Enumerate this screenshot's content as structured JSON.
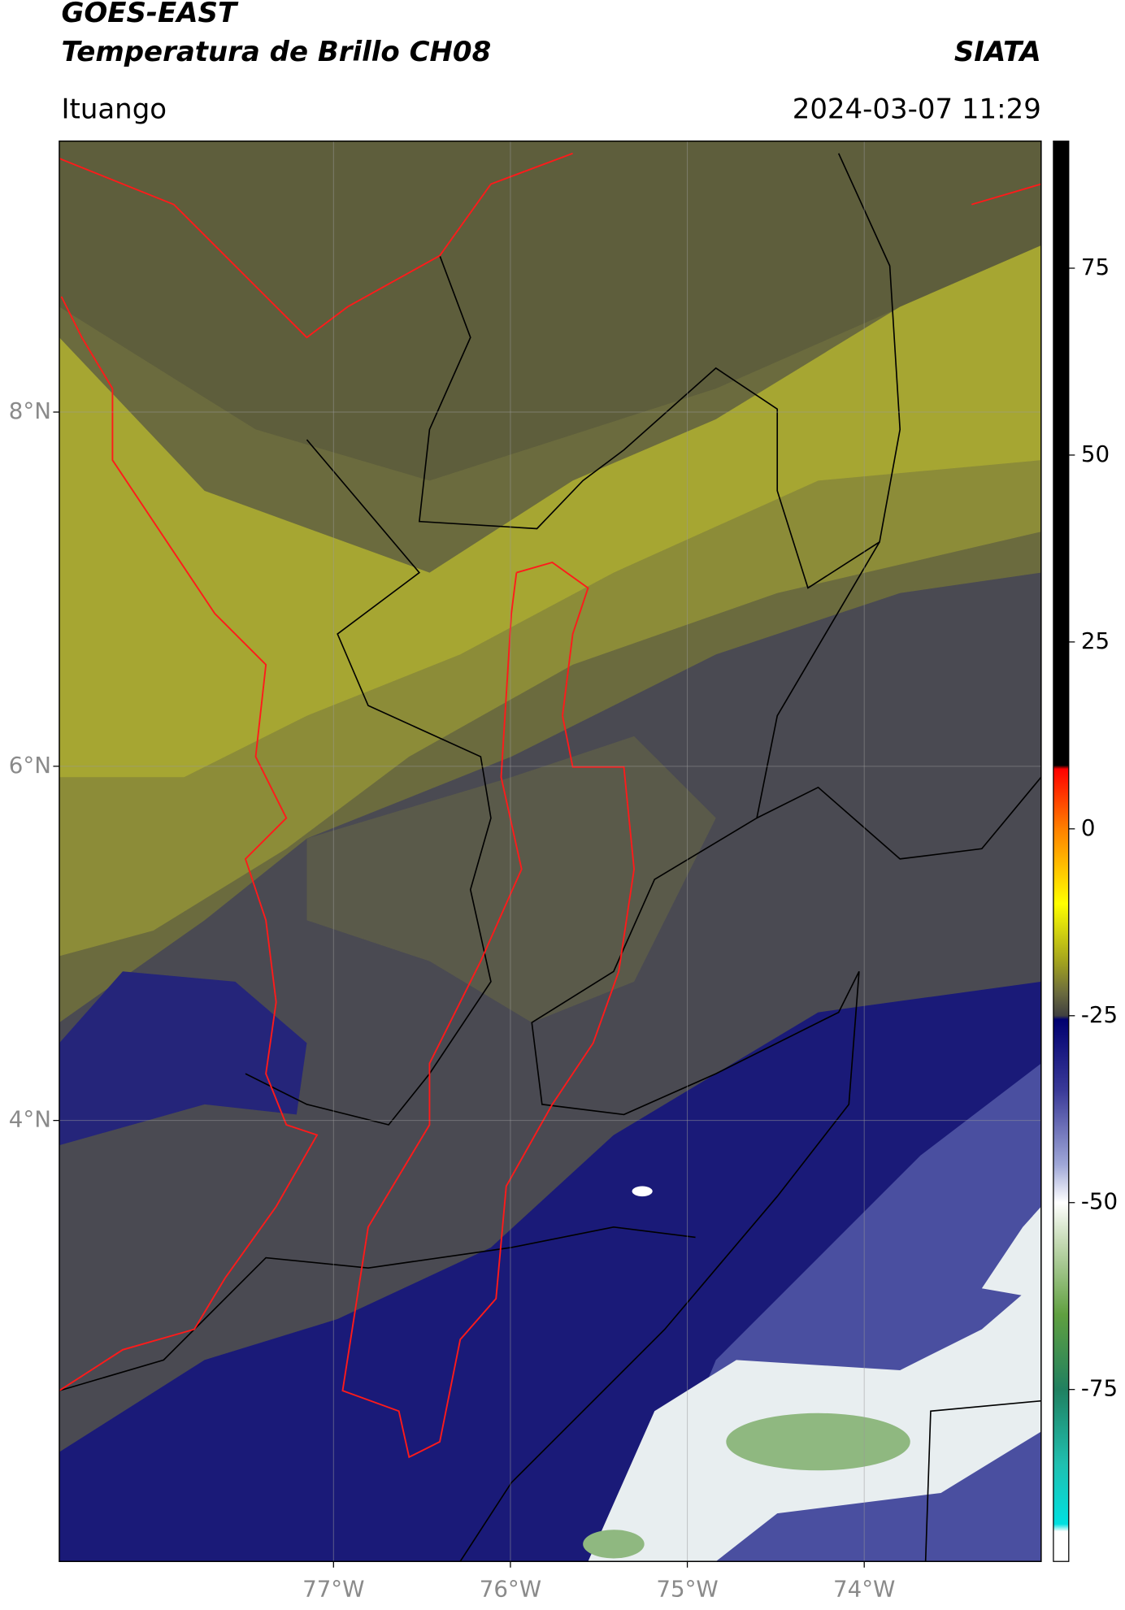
{
  "header": {
    "title": "GOES-EAST",
    "subtitle": "Temperatura de Brillo CH08",
    "organization": "SIATA",
    "location": "Ituango",
    "datetime": "2024-03-07 11:29"
  },
  "map": {
    "xlim": [
      -78.55,
      -73.0
    ],
    "ylim": [
      1.51,
      9.53
    ],
    "xticks": [
      {
        "value": -77,
        "label": "77°W"
      },
      {
        "value": -76,
        "label": "76°W"
      },
      {
        "value": -75,
        "label": "75°W"
      },
      {
        "value": -74,
        "label": "74°W"
      }
    ],
    "yticks": [
      {
        "value": 8,
        "label": "8°N"
      },
      {
        "value": 6,
        "label": "6°N"
      },
      {
        "value": 4,
        "label": "4°N"
      }
    ],
    "grid": true
  },
  "colorbar": {
    "clim": [
      -98,
      92
    ],
    "ticks": [
      75,
      50,
      25,
      0,
      -25,
      -50,
      -75
    ],
    "colormap": [
      {
        "value": 92,
        "color": "#000000"
      },
      {
        "value": 8.5,
        "color": "#000000"
      },
      {
        "value": 8,
        "color": "#ff0000"
      },
      {
        "value": 0,
        "color": "#ff8000"
      },
      {
        "value": -10,
        "color": "#ffff00"
      },
      {
        "value": -18,
        "color": "#a0a020"
      },
      {
        "value": -22,
        "color": "#6b6b3e"
      },
      {
        "value": -25,
        "color": "#404040"
      },
      {
        "value": -25.5,
        "color": "#000070"
      },
      {
        "value": -35,
        "color": "#3a3a98"
      },
      {
        "value": -45,
        "color": "#a0a8d8"
      },
      {
        "value": -50,
        "color": "#ffffff"
      },
      {
        "value": -55,
        "color": "#c8dcb8"
      },
      {
        "value": -65,
        "color": "#60a040"
      },
      {
        "value": -75,
        "color": "#208060"
      },
      {
        "value": -85,
        "color": "#20c0b0"
      },
      {
        "value": -93,
        "color": "#00e0e0"
      },
      {
        "value": -94,
        "color": "#ffffff"
      },
      {
        "value": -98,
        "color": "#ffffff"
      }
    ]
  }
}
